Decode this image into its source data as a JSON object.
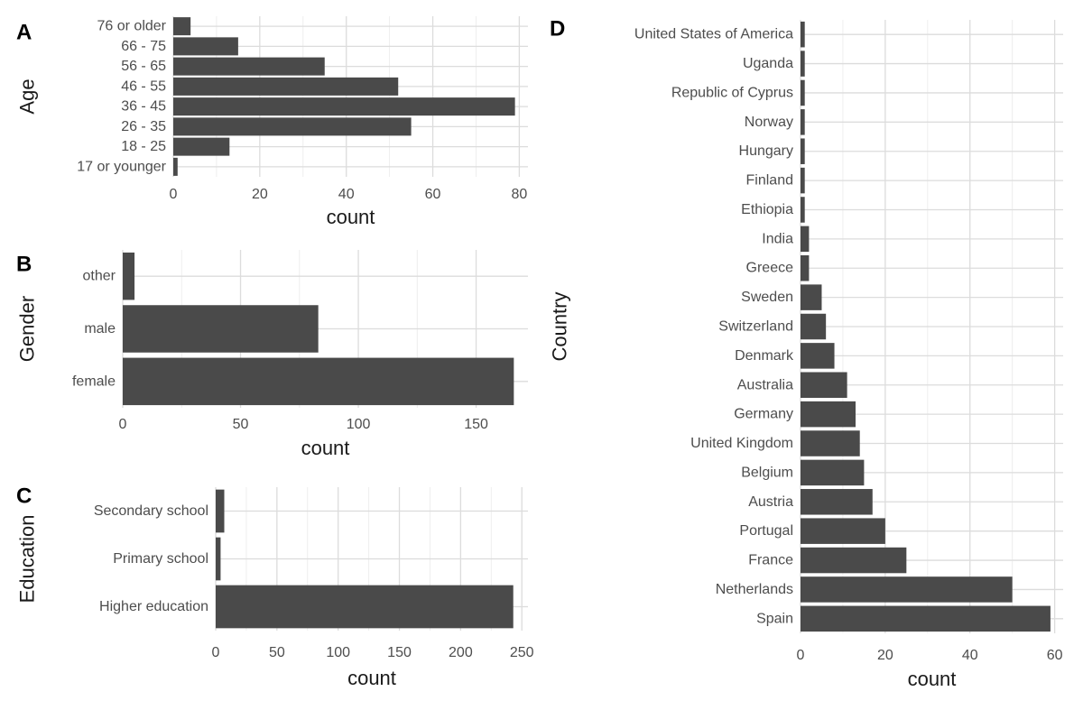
{
  "colors": {
    "bar": "#4a4a4a",
    "grid_major": "#dcdcdc",
    "grid_minor": "#ececec",
    "text": "#4d4d4d"
  },
  "chart_data": [
    {
      "id": "A",
      "panel_label": "A",
      "type": "bar",
      "orientation": "horizontal",
      "xlabel": "count",
      "ylabel": "Age",
      "categories": [
        "17 or younger",
        "18 - 25",
        "26 - 35",
        "36 - 45",
        "46 - 55",
        "56 - 65",
        "66 - 75",
        "76 or older"
      ],
      "values": [
        1,
        13,
        55,
        79,
        52,
        35,
        15,
        4
      ],
      "xlim": [
        0,
        82
      ],
      "xticks": [
        0,
        20,
        40,
        60,
        80
      ],
      "grid": true
    },
    {
      "id": "B",
      "panel_label": "B",
      "type": "bar",
      "orientation": "horizontal",
      "xlabel": "count",
      "ylabel": "Gender",
      "categories": [
        "female",
        "male",
        "other"
      ],
      "values": [
        166,
        83,
        5
      ],
      "xlim": [
        0,
        172
      ],
      "xticks": [
        0,
        50,
        100,
        150
      ],
      "grid": true
    },
    {
      "id": "C",
      "panel_label": "C",
      "type": "bar",
      "orientation": "horizontal",
      "xlabel": "count",
      "ylabel": "Education",
      "categories": [
        "Higher education",
        "Primary school",
        "Secondary school"
      ],
      "values": [
        243,
        4,
        7
      ],
      "xlim": [
        0,
        255
      ],
      "xticks": [
        0,
        50,
        100,
        150,
        200,
        250
      ],
      "grid": true
    },
    {
      "id": "D",
      "panel_label": "D",
      "type": "bar",
      "orientation": "horizontal",
      "xlabel": "count",
      "ylabel": "Country",
      "categories": [
        "Spain",
        "Netherlands",
        "France",
        "Portugal",
        "Austria",
        "Belgium",
        "United Kingdom",
        "Germany",
        "Australia",
        "Denmark",
        "Switzerland",
        "Sweden",
        "Greece",
        "India",
        "Ethiopia",
        "Finland",
        "Hungary",
        "Norway",
        "Republic of Cyprus",
        "Uganda",
        "United States of America"
      ],
      "values": [
        59,
        50,
        25,
        20,
        17,
        15,
        14,
        13,
        11,
        8,
        6,
        5,
        2,
        2,
        1,
        1,
        1,
        1,
        1,
        1,
        1
      ],
      "xlim": [
        0,
        62
      ],
      "xticks": [
        0,
        20,
        40,
        60
      ],
      "grid": true
    }
  ]
}
